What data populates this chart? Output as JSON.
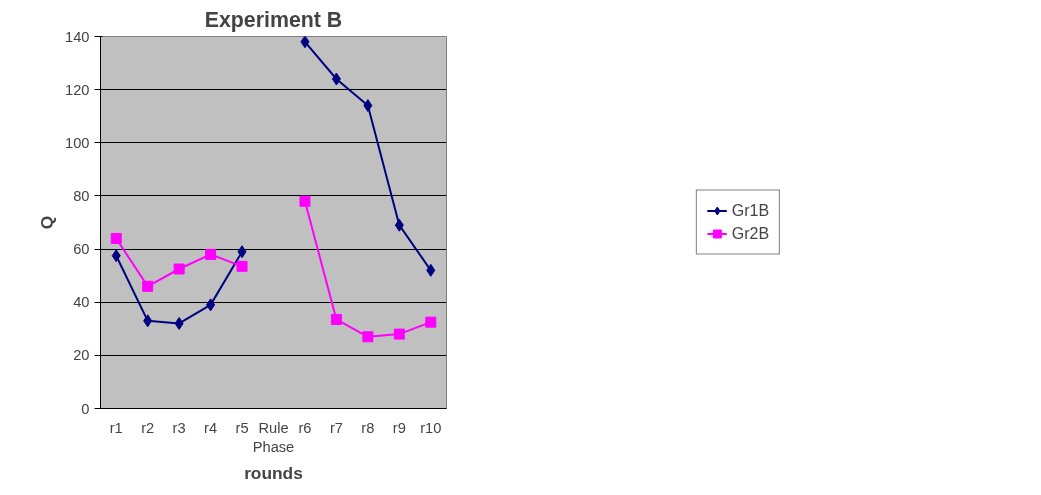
{
  "chart_data": {
    "type": "line",
    "title": "Experiment B",
    "xlabel": "rounds",
    "ylabel": "Q",
    "categories": [
      "r1",
      "r2",
      "r3",
      "r4",
      "r5",
      "Rule\nPhase",
      "r6",
      "r7",
      "r8",
      "r9",
      "r10"
    ],
    "series": [
      {
        "name": "Gr1B",
        "color": "#000080",
        "marker": "diamond",
        "values": [
          57.5,
          33,
          32,
          39,
          59,
          null,
          138,
          124,
          114,
          69,
          52
        ]
      },
      {
        "name": "Gr2B",
        "color": "#ff00ff",
        "marker": "square",
        "values": [
          64,
          46,
          52.5,
          58,
          53.5,
          null,
          78,
          33.5,
          27,
          28,
          32.5
        ]
      }
    ],
    "ylim": [
      0,
      140
    ],
    "yticks": [
      0,
      20,
      40,
      60,
      80,
      100,
      120,
      140
    ],
    "grid": "y",
    "legend": "right",
    "line_style": "solid"
  }
}
